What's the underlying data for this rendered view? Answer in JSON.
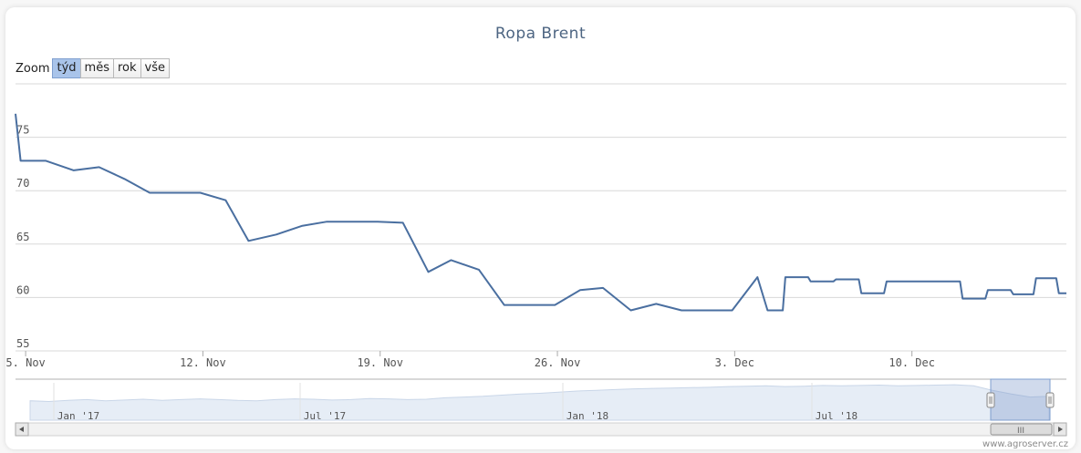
{
  "chart_data": {
    "type": "line",
    "title": "Ropa Brent",
    "xlabel": "",
    "ylabel": "",
    "ylim": [
      55,
      80
    ],
    "y_ticks": [
      55,
      60,
      65,
      70,
      75
    ],
    "grid": true,
    "color": "#4a6fa0",
    "x_ticks": [
      {
        "day": 0,
        "label": "5. Nov"
      },
      {
        "day": 7,
        "label": "12. Nov"
      },
      {
        "day": 14,
        "label": "19. Nov"
      },
      {
        "day": 21,
        "label": "26. Nov"
      },
      {
        "day": 28,
        "label": "3. Dec"
      },
      {
        "day": 35,
        "label": "10. Dec"
      }
    ],
    "x_range": [
      -0.4,
      41.1
    ],
    "series": [
      {
        "points": [
          [
            -0.4,
            77.2
          ],
          [
            -0.2,
            72.8
          ],
          [
            0.8,
            72.8
          ],
          [
            1.9,
            71.9
          ],
          [
            2.9,
            72.2
          ],
          [
            3.9,
            71.1
          ],
          [
            4.9,
            69.8
          ],
          [
            6.9,
            69.8
          ],
          [
            7.9,
            69.1
          ],
          [
            8.8,
            65.3
          ],
          [
            9.9,
            65.9
          ],
          [
            10.9,
            66.7
          ],
          [
            11.9,
            67.1
          ],
          [
            12.9,
            67.1
          ],
          [
            13.9,
            67.1
          ],
          [
            14.9,
            67.0
          ],
          [
            15.9,
            62.4
          ],
          [
            16.8,
            63.5
          ],
          [
            17.9,
            62.6
          ],
          [
            18.9,
            59.3
          ],
          [
            20.9,
            59.3
          ],
          [
            21.9,
            60.7
          ],
          [
            22.8,
            60.9
          ],
          [
            23.9,
            58.8
          ],
          [
            24.9,
            59.4
          ],
          [
            25.9,
            58.8
          ],
          [
            27.9,
            58.8
          ],
          [
            28.9,
            61.9
          ],
          [
            29.3,
            58.8
          ],
          [
            29.9,
            58.8
          ],
          [
            30.0,
            61.9
          ],
          [
            30.9,
            61.9
          ],
          [
            31.0,
            61.5
          ],
          [
            31.9,
            61.5
          ],
          [
            32.0,
            61.7
          ],
          [
            32.9,
            61.7
          ],
          [
            33.0,
            60.4
          ],
          [
            33.9,
            60.4
          ],
          [
            34.0,
            61.5
          ],
          [
            36.9,
            61.5
          ],
          [
            37.0,
            59.9
          ],
          [
            37.9,
            59.9
          ],
          [
            38.0,
            60.7
          ],
          [
            38.9,
            60.7
          ],
          [
            39.0,
            60.3
          ],
          [
            39.8,
            60.3
          ],
          [
            39.9,
            61.8
          ],
          [
            40.7,
            61.8
          ],
          [
            40.8,
            60.4
          ],
          [
            41.1,
            60.4
          ]
        ]
      }
    ]
  },
  "navigator": {
    "labels": [
      "Jan '17",
      "Jul '17",
      "Jan '18",
      "Jul '18"
    ],
    "values": [
      0.52,
      0.5,
      0.53,
      0.55,
      0.52,
      0.54,
      0.56,
      0.53,
      0.55,
      0.57,
      0.55,
      0.53,
      0.52,
      0.55,
      0.57,
      0.56,
      0.54,
      0.55,
      0.58,
      0.57,
      0.55,
      0.56,
      0.6,
      0.62,
      0.64,
      0.67,
      0.7,
      0.72,
      0.75,
      0.78,
      0.8,
      0.82,
      0.84,
      0.85,
      0.86,
      0.87,
      0.88,
      0.9,
      0.91,
      0.92,
      0.9,
      0.91,
      0.93,
      0.92,
      0.93,
      0.94,
      0.92,
      0.93,
      0.94,
      0.95,
      0.92,
      0.8,
      0.7,
      0.62,
      0.64
    ],
    "scrollbar_grip": "III"
  },
  "zoom": {
    "label": "Zoom",
    "buttons": [
      "týd",
      "měs",
      "rok",
      "vše"
    ],
    "active": "týd"
  },
  "watermark": "www.agroserver.cz"
}
